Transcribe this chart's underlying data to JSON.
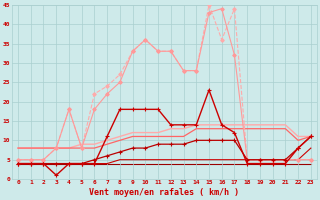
{
  "title": "",
  "xlabel": "Vent moyen/en rafales ( km/h )",
  "background_color": "#ceeaea",
  "grid_color": "#aacfcf",
  "x": [
    0,
    1,
    2,
    3,
    4,
    5,
    6,
    7,
    8,
    9,
    10,
    11,
    12,
    13,
    14,
    15,
    16,
    17,
    18,
    19,
    20,
    21,
    22,
    23
  ],
  "series": [
    {
      "y": [
        5,
        5,
        5,
        8,
        18,
        8,
        22,
        24,
        27,
        33,
        36,
        33,
        33,
        28,
        28,
        45,
        36,
        44,
        5,
        5,
        5,
        5,
        5,
        5
      ],
      "color": "#ffaaaa",
      "lw": 0.8,
      "marker": "D",
      "ms": 1.8,
      "zorder": 3,
      "ls": "--"
    },
    {
      "y": [
        5,
        5,
        5,
        8,
        18,
        8,
        18,
        22,
        25,
        33,
        36,
        33,
        33,
        28,
        28,
        43,
        44,
        32,
        5,
        5,
        5,
        5,
        5,
        5
      ],
      "color": "#ff9999",
      "lw": 0.8,
      "marker": "D",
      "ms": 1.8,
      "zorder": 3,
      "ls": "-"
    },
    {
      "y": [
        8,
        8,
        8,
        8,
        8,
        9,
        9,
        10,
        11,
        12,
        12,
        12,
        13,
        13,
        14,
        14,
        14,
        14,
        14,
        14,
        14,
        14,
        11,
        11
      ],
      "color": "#ffaaaa",
      "lw": 1.0,
      "marker": null,
      "ms": 0,
      "zorder": 2,
      "ls": "-"
    },
    {
      "y": [
        8,
        8,
        8,
        8,
        8,
        8,
        8,
        9,
        10,
        11,
        11,
        11,
        11,
        11,
        13,
        13,
        13,
        13,
        13,
        13,
        13,
        13,
        10,
        11
      ],
      "color": "#ff6666",
      "lw": 0.9,
      "marker": null,
      "ms": 0,
      "zorder": 2,
      "ls": "-"
    },
    {
      "y": [
        4,
        4,
        4,
        1,
        4,
        4,
        4,
        11,
        18,
        18,
        18,
        18,
        14,
        14,
        14,
        23,
        14,
        12,
        4,
        4,
        4,
        4,
        8,
        11
      ],
      "color": "#cc0000",
      "lw": 1.0,
      "marker": "+",
      "ms": 3.5,
      "zorder": 5,
      "ls": "-"
    },
    {
      "y": [
        4,
        4,
        4,
        4,
        4,
        4,
        4,
        4,
        4,
        4,
        4,
        4,
        4,
        4,
        4,
        4,
        4,
        4,
        4,
        4,
        4,
        4,
        4,
        4
      ],
      "color": "#990000",
      "lw": 0.8,
      "marker": null,
      "ms": 0,
      "zorder": 1,
      "ls": "-"
    },
    {
      "y": [
        4,
        4,
        4,
        4,
        4,
        4,
        4,
        4,
        5,
        5,
        5,
        5,
        5,
        5,
        5,
        5,
        5,
        5,
        5,
        5,
        5,
        5,
        5,
        8
      ],
      "color": "#cc0000",
      "lw": 0.8,
      "marker": null,
      "ms": 0,
      "zorder": 2,
      "ls": "-"
    },
    {
      "y": [
        4,
        4,
        4,
        4,
        4,
        4,
        5,
        6,
        7,
        8,
        8,
        9,
        9,
        9,
        10,
        10,
        10,
        10,
        5,
        5,
        5,
        5,
        8,
        11
      ],
      "color": "#bb0000",
      "lw": 0.9,
      "marker": "+",
      "ms": 2.5,
      "zorder": 4,
      "ls": "-"
    }
  ],
  "xlim": [
    -0.5,
    23.5
  ],
  "ylim": [
    0,
    45
  ],
  "yticks": [
    0,
    5,
    10,
    15,
    20,
    25,
    30,
    35,
    40,
    45
  ],
  "xticks": [
    0,
    1,
    2,
    3,
    4,
    5,
    6,
    7,
    8,
    9,
    10,
    11,
    12,
    13,
    14,
    15,
    16,
    17,
    18,
    19,
    20,
    21,
    22,
    23
  ],
  "tick_color": "#cc0000",
  "label_color": "#cc0000",
  "tick_fontsize": 4.5,
  "xlabel_fontsize": 6.0
}
